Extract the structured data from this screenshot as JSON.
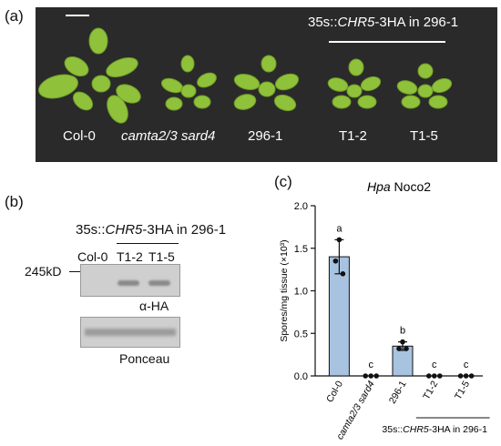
{
  "panel_a": {
    "label": "(a)",
    "header": "35s::CHR5-3HA in 296-1",
    "header_prefix": "35s::",
    "header_gene": "CHR5",
    "header_suffix": "-3HA in 296-1",
    "plants": [
      "Col-0",
      "camta2/3 sard4",
      "296-1",
      "T1-2",
      "T1-5"
    ],
    "plant_colors": {
      "leaf": "#8fc23a",
      "leaf_dark": "#6e9e27",
      "background": "#2b2a2a"
    }
  },
  "panel_b": {
    "label": "(b)",
    "header_prefix": "35s::",
    "header_gene": "CHR5",
    "header_suffix": "-3HA in 296-1",
    "lanes": [
      "Col-0",
      "T1-2",
      "T1-5"
    ],
    "marker": "245kD",
    "blot1_label": "α-HA",
    "blot2_label": "Ponceau"
  },
  "panel_c": {
    "label": "(c)",
    "title_italic": "Hpa",
    "title_rest": "Noco2",
    "ylabel": "Spores/mg tissue (×10³)",
    "group_label_prefix": "35s::",
    "group_label_gene": "CHR5",
    "group_label_suffix": "-3HA in 296-1"
  },
  "chart_data": {
    "type": "bar",
    "categories": [
      "Col-0",
      "camta2/3 sard4",
      "296-1",
      "T1-2",
      "T1-5"
    ],
    "values": [
      1.4,
      0.0,
      0.35,
      0.0,
      0.0
    ],
    "errors": [
      0.2,
      0.0,
      0.05,
      0.0,
      0.0
    ],
    "points": [
      [
        1.6,
        1.35,
        1.2
      ],
      [
        0,
        0,
        0
      ],
      [
        0.4,
        0.32,
        0.32
      ],
      [
        0,
        0,
        0
      ],
      [
        0,
        0,
        0
      ]
    ],
    "letters": [
      "a",
      "c",
      "b",
      "c",
      "c"
    ],
    "ylim": [
      0,
      2.0
    ],
    "yticks": [
      "0.0",
      "0.5",
      "1.0",
      "1.5",
      "2.0"
    ],
    "title": "Hpa Noco2",
    "ylabel": "Spores/mg tissue (×10³)",
    "bar_color": "#a7c3e0"
  }
}
